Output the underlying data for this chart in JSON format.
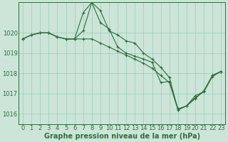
{
  "background_color": "#cce5d8",
  "grid_color": "#99ccbb",
  "line_color": "#2d6e3e",
  "xlabel": "Graphe pression niveau de la mer (hPa)",
  "xlabel_fontsize": 7,
  "tick_fontsize": 6,
  "ylim": [
    1015.5,
    1021.5
  ],
  "xlim": [
    -0.5,
    23.5
  ],
  "yticks": [
    1016,
    1017,
    1018,
    1019,
    1020
  ],
  "xticks": [
    0,
    1,
    2,
    3,
    4,
    5,
    6,
    7,
    8,
    9,
    10,
    11,
    12,
    13,
    14,
    15,
    16,
    17,
    18,
    19,
    20,
    21,
    22,
    23
  ],
  "series": [
    {
      "x": [
        0,
        1,
        2,
        3,
        4,
        5,
        6,
        7,
        8,
        9,
        10,
        11,
        12,
        13,
        14,
        15,
        16,
        17,
        18,
        19,
        20,
        21,
        22,
        23
      ],
      "y": [
        1019.7,
        1019.9,
        1020.0,
        1020.0,
        1019.8,
        1019.7,
        1019.7,
        1020.1,
        1021.5,
        1021.1,
        1020.1,
        1019.9,
        1019.6,
        1019.5,
        1019.0,
        1018.7,
        1018.3,
        1017.8,
        1016.2,
        1016.4,
        1016.9,
        1017.1,
        1017.9,
        1018.1
      ]
    },
    {
      "x": [
        0,
        1,
        2,
        3,
        4,
        5,
        6,
        7,
        8,
        9,
        10,
        11,
        12,
        13,
        14,
        15,
        16,
        17,
        18,
        19,
        20,
        21,
        22,
        23
      ],
      "y": [
        1019.7,
        1019.9,
        1020.0,
        1020.0,
        1019.8,
        1019.7,
        1019.7,
        1021.0,
        1021.5,
        1020.5,
        1020.2,
        1019.3,
        1019.0,
        1018.85,
        1018.7,
        1018.55,
        1017.55,
        1017.6,
        1016.25,
        1016.4,
        1016.75,
        1017.15,
        1017.9,
        1018.1
      ]
    },
    {
      "x": [
        0,
        1,
        2,
        3,
        4,
        5,
        6,
        7,
        8,
        9,
        10,
        11,
        12,
        13,
        14,
        15,
        16,
        17,
        18,
        19,
        20,
        21,
        22,
        23
      ],
      "y": [
        1019.7,
        1019.9,
        1020.0,
        1020.0,
        1019.8,
        1019.7,
        1019.7,
        1019.7,
        1019.7,
        1019.5,
        1019.3,
        1019.1,
        1018.9,
        1018.7,
        1018.5,
        1018.25,
        1017.9,
        1017.55,
        1016.2,
        1016.4,
        1016.8,
        1017.1,
        1017.85,
        1018.1
      ]
    }
  ]
}
